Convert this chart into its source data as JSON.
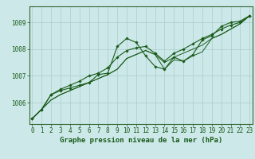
{
  "title": "Graphe pression niveau de la mer (hPa)",
  "bg_color": "#cce8e8",
  "plot_bg_color": "#cce8e8",
  "grid_color": "#aacece",
  "line_color": "#1a5c1a",
  "border_color": "#336633",
  "x_labels": [
    "0",
    "1",
    "2",
    "3",
    "4",
    "5",
    "6",
    "7",
    "8",
    "9",
    "10",
    "11",
    "12",
    "13",
    "14",
    "15",
    "16",
    "17",
    "18",
    "19",
    "20",
    "21",
    "22",
    "23"
  ],
  "ylim": [
    1005.2,
    1009.6
  ],
  "yticks": [
    1006,
    1007,
    1008,
    1009
  ],
  "series1_x": [
    0,
    1,
    2,
    3,
    4,
    5,
    6,
    7,
    8,
    9,
    10,
    11,
    12,
    13,
    14,
    15,
    16,
    17,
    18,
    19,
    20,
    21,
    22,
    23
  ],
  "series1_y": [
    1005.4,
    1005.75,
    1006.3,
    1006.45,
    1006.55,
    1006.65,
    1006.75,
    1007.05,
    1007.1,
    1008.1,
    1008.4,
    1008.25,
    1007.75,
    1007.35,
    1007.25,
    1007.7,
    1007.55,
    1007.8,
    1008.35,
    1008.5,
    1008.85,
    1009.0,
    1009.05,
    1009.25
  ],
  "series2_x": [
    0,
    1,
    2,
    3,
    4,
    5,
    6,
    7,
    8,
    9,
    10,
    11,
    12,
    13,
    14,
    15,
    16,
    17,
    18,
    19,
    20,
    21,
    22,
    23
  ],
  "series2_y": [
    1005.4,
    1005.75,
    1006.3,
    1006.5,
    1006.65,
    1006.8,
    1007.0,
    1007.1,
    1007.3,
    1007.7,
    1007.95,
    1008.05,
    1008.1,
    1007.85,
    1007.55,
    1007.85,
    1008.0,
    1008.2,
    1008.4,
    1008.55,
    1008.75,
    1008.9,
    1009.0,
    1009.25
  ],
  "series3_x": [
    0,
    2,
    3,
    4,
    5,
    6,
    7,
    8,
    9,
    10,
    11,
    12,
    13,
    14,
    15,
    16,
    17,
    18,
    19,
    20,
    21,
    22,
    23
  ],
  "series3_y": [
    1005.4,
    1006.1,
    1006.3,
    1006.45,
    1006.6,
    1006.75,
    1006.9,
    1007.05,
    1007.25,
    1007.65,
    1007.8,
    1007.95,
    1007.8,
    1007.5,
    1007.7,
    1007.85,
    1008.0,
    1008.15,
    1008.4,
    1008.55,
    1008.75,
    1008.95,
    1009.25
  ],
  "series4_x": [
    0,
    2,
    3,
    4,
    5,
    6,
    7,
    8,
    9,
    10,
    11,
    12,
    13,
    14,
    15,
    16,
    17,
    18,
    19,
    20,
    21,
    22,
    23
  ],
  "series4_y": [
    1005.4,
    1006.1,
    1006.3,
    1006.45,
    1006.6,
    1006.75,
    1006.9,
    1007.05,
    1007.25,
    1007.65,
    1007.8,
    1007.95,
    1007.8,
    1007.25,
    1007.6,
    1007.55,
    1007.75,
    1007.9,
    1008.4,
    1008.55,
    1008.75,
    1008.95,
    1009.25
  ],
  "label_fontsize": 5.5,
  "tick_fontsize": 5.5,
  "title_fontsize": 6.5
}
